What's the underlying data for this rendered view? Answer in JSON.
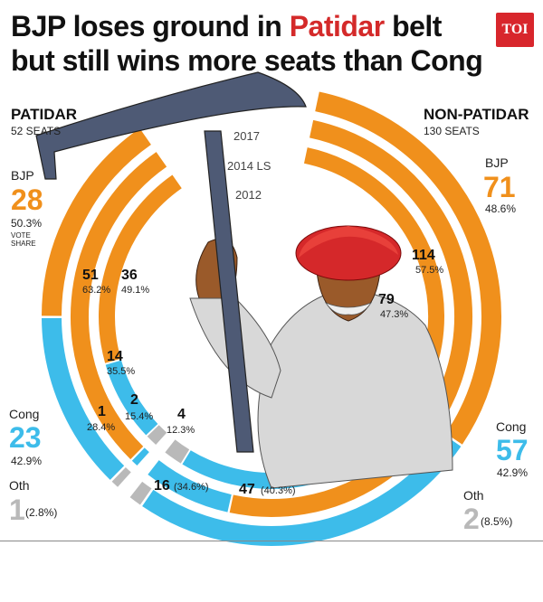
{
  "headline": {
    "line1_a": "BJP loses ground in ",
    "line1_hl": "Patidar",
    "line1_b": " belt",
    "line2": "but still wins more seats than Cong"
  },
  "logo": "TOI",
  "colors": {
    "bjp": "#f0901c",
    "cong": "#3dbcea",
    "others": "#b9b9b9",
    "highlight": "#d42a2a"
  },
  "rings": {
    "r2017": "2017",
    "r2014": "2014 LS",
    "r2012": "2012"
  },
  "patidar": {
    "title": "PATIDAR",
    "seats": "52 SEATS",
    "bjp_label": "BJP",
    "bjp_seats": "28",
    "bjp_share": "50.3%",
    "vote_share_1": "VOTE",
    "vote_share_2": "SHARE",
    "cong_label": "Cong",
    "cong_seats": "23",
    "cong_share": "42.9%",
    "oth_label": "Oth",
    "oth_seats": "1",
    "oth_share": "(2.8%)",
    "ls2014_bjp": "51",
    "ls2014_bjp_share": "63.2%",
    "ls2014_cong": "1",
    "ls2014_cong_share": "28.4%",
    "y2012_bjp": "36",
    "y2012_bjp_share": "49.1%",
    "y2012_cong": "14",
    "y2012_cong_share": "35.5%",
    "y2012_oth": "2",
    "y2012_oth_share": "15.4%"
  },
  "nonpatidar": {
    "title": "NON-PATIDAR",
    "seats": "130 SEATS",
    "bjp_label": "BJP",
    "bjp_seats": "71",
    "bjp_share": "48.6%",
    "cong_label": "Cong",
    "cong_seats": "57",
    "cong_share": "42.9%",
    "oth_label": "Oth",
    "oth_seats": "2",
    "oth_share": "(8.5%)",
    "ls2014_bjp": "114",
    "ls2014_bjp_share": "57.5%",
    "ls2014_cong": "16",
    "ls2014_cong_share": "(34.6%)",
    "y2012_bjp": "79",
    "y2012_bjp_share": "47.3%",
    "y2012_cong": "47",
    "y2012_cong_share": "(40.3%)",
    "y2012_oth": "4",
    "y2012_oth_share": "12.3%"
  },
  "chart_data": {
    "type": "pie",
    "title": "BJP loses ground in Patidar belt but still wins more seats than Cong",
    "series": [
      {
        "name": "PATIDAR 2017",
        "values": {
          "BJP": 28,
          "Cong": 23,
          "Oth": 1
        },
        "vote_share": {
          "BJP": 50.3,
          "Cong": 42.9,
          "Oth": 2.8
        }
      },
      {
        "name": "PATIDAR 2014 LS",
        "values": {
          "BJP": 51,
          "Cong": 1
        },
        "vote_share": {
          "BJP": 63.2,
          "Cong": 28.4
        }
      },
      {
        "name": "PATIDAR 2012",
        "values": {
          "BJP": 36,
          "Cong": 14,
          "Oth": 2
        },
        "vote_share": {
          "BJP": 49.1,
          "Cong": 35.5,
          "Oth": 15.4
        }
      },
      {
        "name": "NON-PATIDAR 2017",
        "values": {
          "BJP": 71,
          "Cong": 57,
          "Oth": 2
        },
        "vote_share": {
          "BJP": 48.6,
          "Cong": 42.9,
          "Oth": 8.5
        }
      },
      {
        "name": "NON-PATIDAR 2014 LS",
        "values": {
          "BJP": 114,
          "Cong": 16
        },
        "vote_share": {
          "BJP": 57.5,
          "Cong": 34.6
        }
      },
      {
        "name": "NON-PATIDAR 2012",
        "values": {
          "BJP": 79,
          "Cong": 47,
          "Oth": 4
        },
        "vote_share": {
          "BJP": 47.3,
          "Cong": 40.3,
          "Oth": 12.3
        }
      }
    ]
  }
}
